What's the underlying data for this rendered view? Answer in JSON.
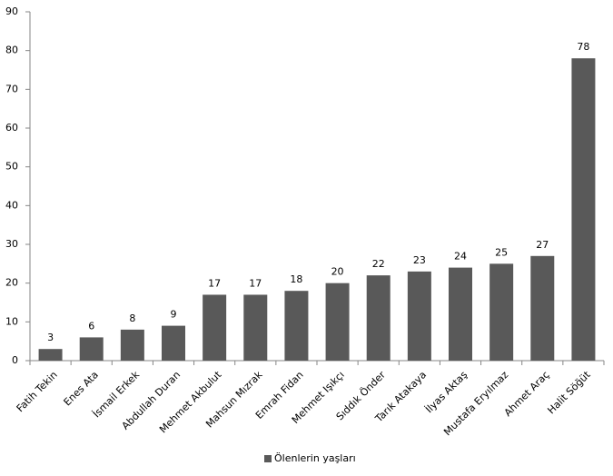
{
  "chart_data": {
    "type": "bar",
    "categories": [
      "Fatih Tekin",
      "Enes Ata",
      "İsmail Erkek",
      "Abdullah Duran",
      "Mehmet Akbulut",
      "Mahsun Mızrak",
      "Emrah Fidan",
      "Mehmet Işıkçı",
      "Sıddık Önder",
      "Tarık Atakaya",
      "İlyas Aktaş",
      "Mustafa Eryılmaz",
      "Ahmet Araç",
      "Halit Söğüt"
    ],
    "series": [
      {
        "name": "Ölenlerin yaşları",
        "color": "#595959",
        "values": [
          3,
          6,
          8,
          9,
          17,
          17,
          18,
          20,
          22,
          23,
          24,
          25,
          27,
          78
        ]
      }
    ],
    "ylim": [
      0,
      90
    ],
    "yticks": [
      0,
      10,
      20,
      30,
      40,
      50,
      60,
      70,
      80,
      90
    ],
    "grid": false,
    "legend": "bottom"
  }
}
